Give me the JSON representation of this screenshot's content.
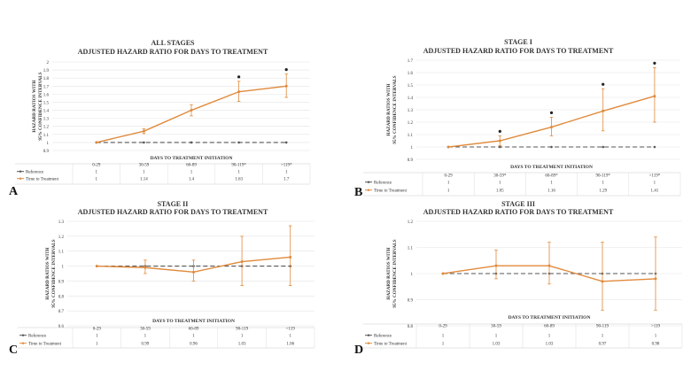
{
  "colors": {
    "reference": "#555555",
    "treatment": "#e08a3c",
    "grid": "#e4e4e4",
    "text": "#333333",
    "panel_letter": "#111111"
  },
  "chart_data": [
    {
      "type": "line",
      "panel_letter": "A",
      "title": "ALL STAGES",
      "subtitle": "ADJUSTED HAZARD RATIO FOR DAYS TO TREATMENT",
      "ylabel": "HAZARD RATIOS WITH 95% CONFIDENCE INTERVALS",
      "xlabel": "DAYS TO TREATMENT INITIATION",
      "ylim": [
        0.9,
        2.0
      ],
      "yticks": [
        0.9,
        1.0,
        1.1,
        1.2,
        1.3,
        1.4,
        1.5,
        1.6,
        1.7,
        1.8,
        1.9,
        2.0
      ],
      "ytick_labels": [
        "0.9",
        "1",
        "1.1",
        "1.2",
        "1.3",
        "1.4",
        "1.5",
        "1.6",
        "1.7",
        "1.8",
        "1.9",
        "2"
      ],
      "grid": true,
      "categories": [
        "0-29",
        "30-59",
        "60-89",
        "90-119*",
        ">119*"
      ],
      "series": [
        {
          "name": "Reference",
          "style": "dashed",
          "values": [
            1,
            1,
            1,
            1,
            1
          ]
        },
        {
          "name": "Time to Treatment",
          "style": "solid",
          "values": [
            1,
            1.14,
            1.4,
            1.63,
            1.7
          ],
          "ci_low": [
            1,
            1.11,
            1.33,
            1.51,
            1.56
          ],
          "ci_high": [
            1,
            1.17,
            1.47,
            1.76,
            1.85
          ]
        }
      ],
      "table": {
        "rows": [
          {
            "label": "Reference",
            "values": [
              "1",
              "1",
              "1",
              "1",
              "1"
            ]
          },
          {
            "label": "Time to Treatment",
            "values": [
              "1",
              "1.14",
              "1.4",
              "1.63",
              "1.7"
            ]
          }
        ]
      },
      "asterisk_categories": [
        3,
        4
      ]
    },
    {
      "type": "line",
      "panel_letter": "B",
      "title": "STAGE I",
      "subtitle": "ADJUSTED HAZARD RATIO FOR DAYS TO TREATMENT",
      "ylabel": "HAZARD RATIOS WITH 95% CONFIDENCE INTERVALS",
      "xlabel": "DAYS TO TREATMENT INITIATION",
      "ylim": [
        0.9,
        1.7
      ],
      "yticks": [
        0.9,
        1.0,
        1.1,
        1.2,
        1.3,
        1.4,
        1.5,
        1.6,
        1.7
      ],
      "ytick_labels": [
        "0.9",
        "1",
        "1.1",
        "1.2",
        "1.3",
        "1.4",
        "1.5",
        "1.6",
        "1.7"
      ],
      "grid": true,
      "categories": [
        "0-29",
        "30-59*",
        "60-89*",
        "90-119*",
        ">119*"
      ],
      "series": [
        {
          "name": "Reference",
          "style": "dashed",
          "values": [
            1,
            1,
            1,
            1,
            1
          ]
        },
        {
          "name": "Time to Treatment",
          "style": "solid",
          "values": [
            1,
            1.05,
            1.16,
            1.29,
            1.41
          ],
          "ci_low": [
            1,
            1.01,
            1.09,
            1.13,
            1.2
          ],
          "ci_high": [
            1,
            1.09,
            1.24,
            1.47,
            1.64
          ]
        }
      ],
      "table": {
        "rows": [
          {
            "label": "Reference",
            "values": [
              "1",
              "1",
              "1",
              "1",
              "1"
            ]
          },
          {
            "label": "Time to Treatment",
            "values": [
              "1",
              "1.05",
              "1.16",
              "1.29",
              "1.41"
            ]
          }
        ]
      },
      "asterisk_categories": [
        1,
        2,
        3,
        4
      ]
    },
    {
      "type": "line",
      "panel_letter": "C",
      "title": "STAGE II",
      "subtitle": "ADJUSTED HAZARD RATIO FOR DAYS TO TREATMENT",
      "ylabel": "HAZARD RATIOS WITH 95% CONFIDENCE INTERVALS",
      "xlabel": "DAYS TO TREATMENT INITIATION",
      "ylim": [
        0.6,
        1.3
      ],
      "yticks": [
        0.6,
        0.7,
        0.8,
        0.9,
        1.0,
        1.1,
        1.2,
        1.3
      ],
      "ytick_labels": [
        "0.6",
        "0.7",
        "0.8",
        "0.9",
        "1",
        "1.1",
        "1.2",
        "1.3"
      ],
      "grid": true,
      "categories": [
        "0-29",
        "30-59",
        "60-89",
        "90-119",
        ">119"
      ],
      "series": [
        {
          "name": "Reference",
          "style": "dashed",
          "values": [
            1,
            1,
            1,
            1,
            1
          ]
        },
        {
          "name": "Time to Treatment",
          "style": "solid",
          "values": [
            1,
            0.99,
            0.96,
            1.03,
            1.06
          ],
          "ci_low": [
            1,
            0.95,
            0.9,
            0.87,
            0.87
          ],
          "ci_high": [
            1,
            1.04,
            1.04,
            1.2,
            1.27
          ]
        }
      ],
      "table": {
        "rows": [
          {
            "label": "Reference",
            "values": [
              "1",
              "1",
              "1",
              "1",
              "1"
            ]
          },
          {
            "label": "Time to Treatment",
            "values": [
              "1",
              "0.99",
              "0.96",
              "1.03",
              "1.06"
            ]
          }
        ]
      },
      "asterisk_categories": []
    },
    {
      "type": "line",
      "panel_letter": "D",
      "title": "STAGE III",
      "subtitle": "ADJUSTED HAZARD RATIO FOR DAYS TO TREATMENT",
      "ylabel": "HAZARD RATIOS WITH 95% CONFIDENCE INTERVALS",
      "xlabel": "DAYS TO TREATMENT INITIATION",
      "ylim": [
        0.8,
        1.2
      ],
      "yticks": [
        0.8,
        0.9,
        1.0,
        1.1,
        1.2
      ],
      "ytick_labels": [
        "0.8",
        "0.9",
        "1",
        "1.1",
        "1.2"
      ],
      "grid": true,
      "categories": [
        "0-29",
        "30-59",
        "60-89",
        "90-119",
        ">119"
      ],
      "series": [
        {
          "name": "Reference",
          "style": "dashed",
          "values": [
            1,
            1,
            1,
            1,
            1
          ]
        },
        {
          "name": "Time to Treatment",
          "style": "solid",
          "values": [
            1,
            1.03,
            1.03,
            0.97,
            0.98
          ],
          "ci_low": [
            1,
            0.98,
            0.96,
            0.86,
            0.86
          ],
          "ci_high": [
            1,
            1.09,
            1.12,
            1.12,
            1.14
          ]
        }
      ],
      "table": {
        "rows": [
          {
            "label": "Reference",
            "values": [
              "1",
              "1",
              "1",
              "1",
              "1"
            ]
          },
          {
            "label": "Time to Treatment",
            "values": [
              "1",
              "1.03",
              "1.03",
              "0.97",
              "0.98"
            ]
          }
        ]
      },
      "asterisk_categories": []
    }
  ]
}
